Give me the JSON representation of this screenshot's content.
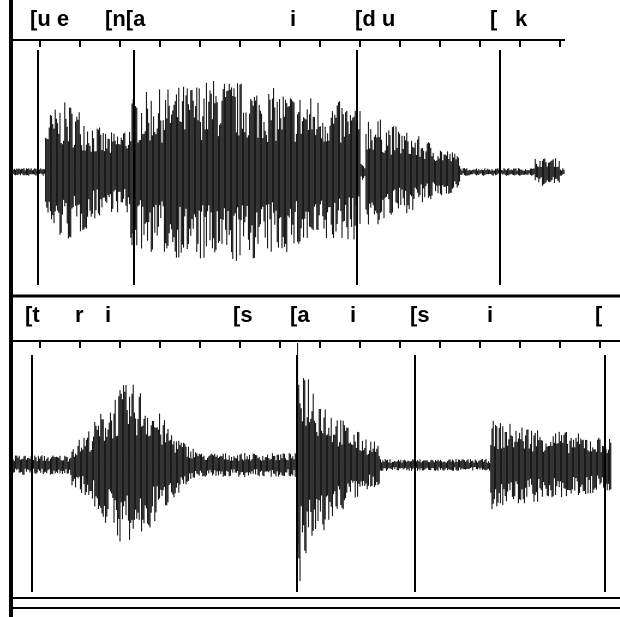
{
  "panels": [
    {
      "labels": [
        "[u e",
        "[n[a",
        "i",
        "[d u",
        "[",
        "k"
      ]
    },
    {
      "labels": [
        "[t",
        "r",
        "i",
        "[s",
        "[a",
        "i",
        "[s",
        "i",
        "["
      ]
    }
  ]
}
